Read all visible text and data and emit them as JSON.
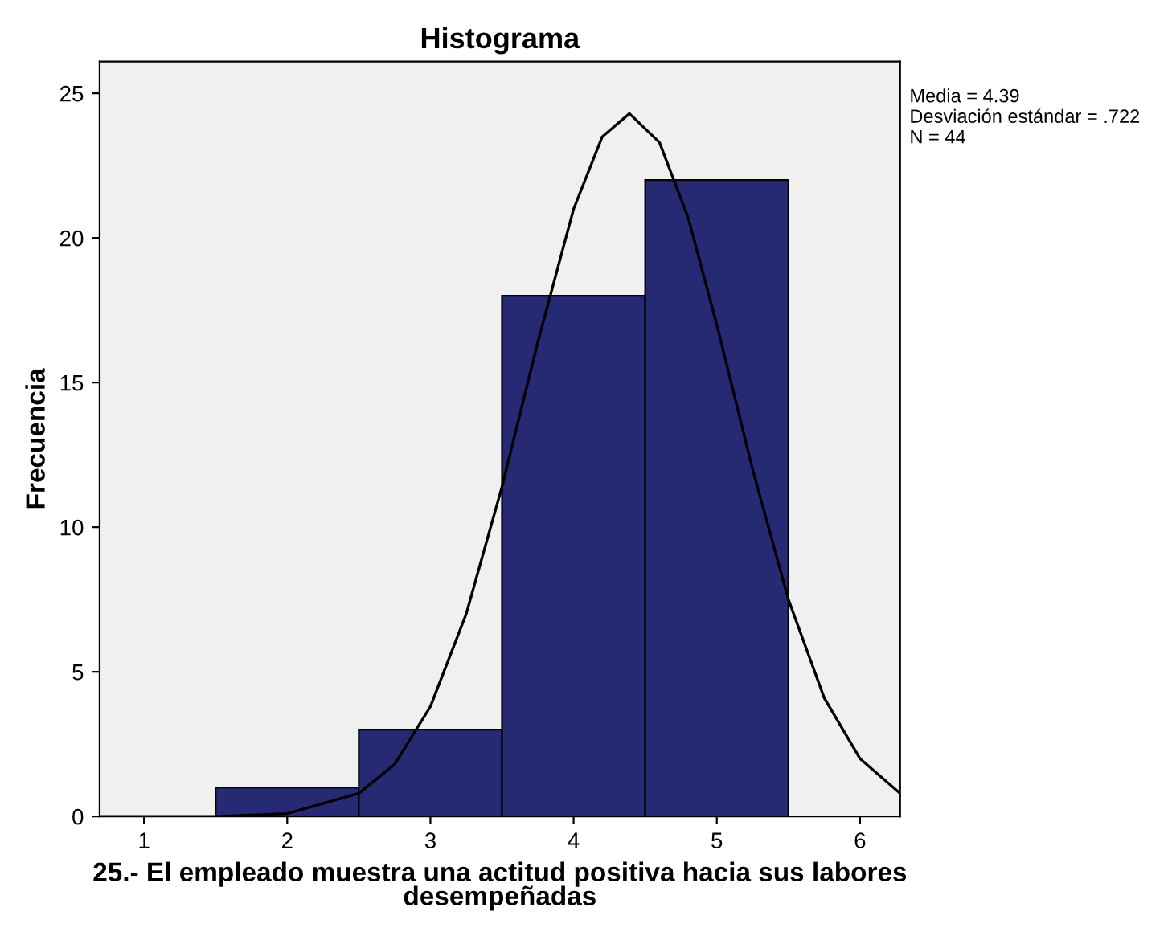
{
  "chart_data": {
    "type": "histogram",
    "title": "Histograma",
    "xlabel": "25.- El empleado muestra una actitud positiva hacia sus labores desempeñadas",
    "ylabel": "Frecuencia",
    "series": [
      {
        "bins": [
          1.5,
          2.5,
          3.5,
          4.5,
          5.5
        ],
        "values": [
          1,
          3,
          18,
          22
        ],
        "color": "#262a73"
      },
      {
        "type": "line",
        "color": "#000000",
        "x": [
          0.7,
          1.5,
          2,
          2.5,
          2.75,
          3,
          3.25,
          3.5,
          3.75,
          4,
          4.2,
          4.39,
          4.6,
          4.8,
          5,
          5.25,
          5.5,
          5.75,
          6,
          6.28
        ],
        "values": [
          0,
          0,
          0.1,
          0.8,
          1.8,
          3.8,
          7.0,
          11.4,
          16.4,
          21.0,
          23.5,
          24.3,
          23.3,
          20.7,
          17.0,
          12.0,
          7.5,
          4.1,
          2.0,
          0.8
        ]
      }
    ],
    "xlim": [
      0.69,
      6.28
    ],
    "xticks": [
      1,
      2,
      3,
      4,
      5,
      6
    ],
    "ylim": [
      0,
      26.1
    ],
    "yticks": [
      0,
      5,
      10,
      15,
      20,
      25
    ],
    "grid": false,
    "legend": false,
    "annotations": [
      "Media = 4.39",
      "Desviación estándar = .722",
      "N = 44"
    ]
  }
}
